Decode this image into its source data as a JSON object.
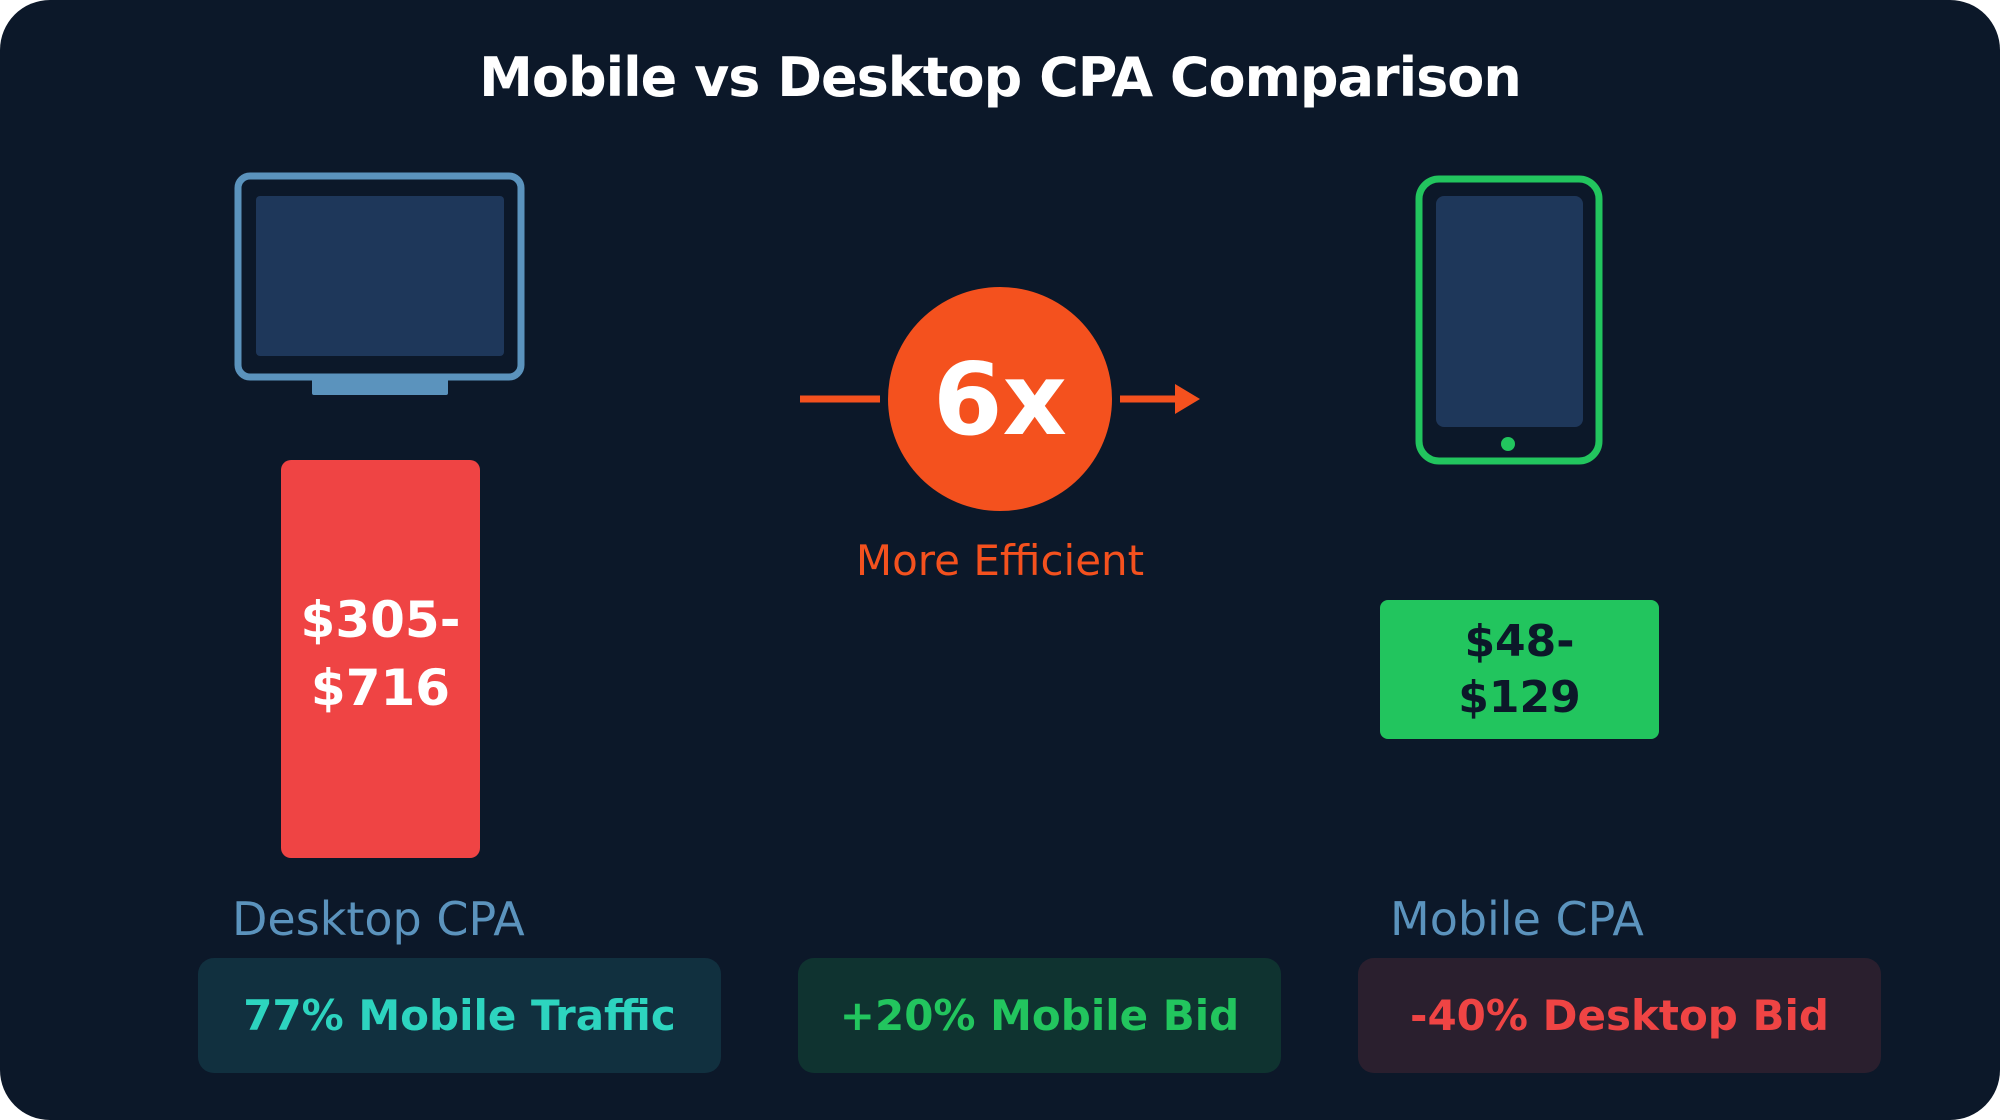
{
  "title": "Mobile vs Desktop CPA Comparison",
  "desktop": {
    "icon": "monitor-icon",
    "cpa_range": [
      "$305-",
      "$716"
    ],
    "label": "Desktop CPA",
    "color": "#ef4444"
  },
  "mobile": {
    "icon": "tablet-icon",
    "cpa_range": [
      "$48-",
      "$129"
    ],
    "label": "Mobile CPA",
    "color": "#22c55e"
  },
  "efficiency": {
    "multiplier": "6x",
    "caption": "More Efficient",
    "color": "#f4511e"
  },
  "stats": [
    {
      "text": "77% Mobile Traffic",
      "color": "#2dd4bf"
    },
    {
      "text": "+20% Mobile Bid",
      "color": "#22c55e"
    },
    {
      "text": "-40% Desktop Bid",
      "color": "#ef4444"
    }
  ]
}
